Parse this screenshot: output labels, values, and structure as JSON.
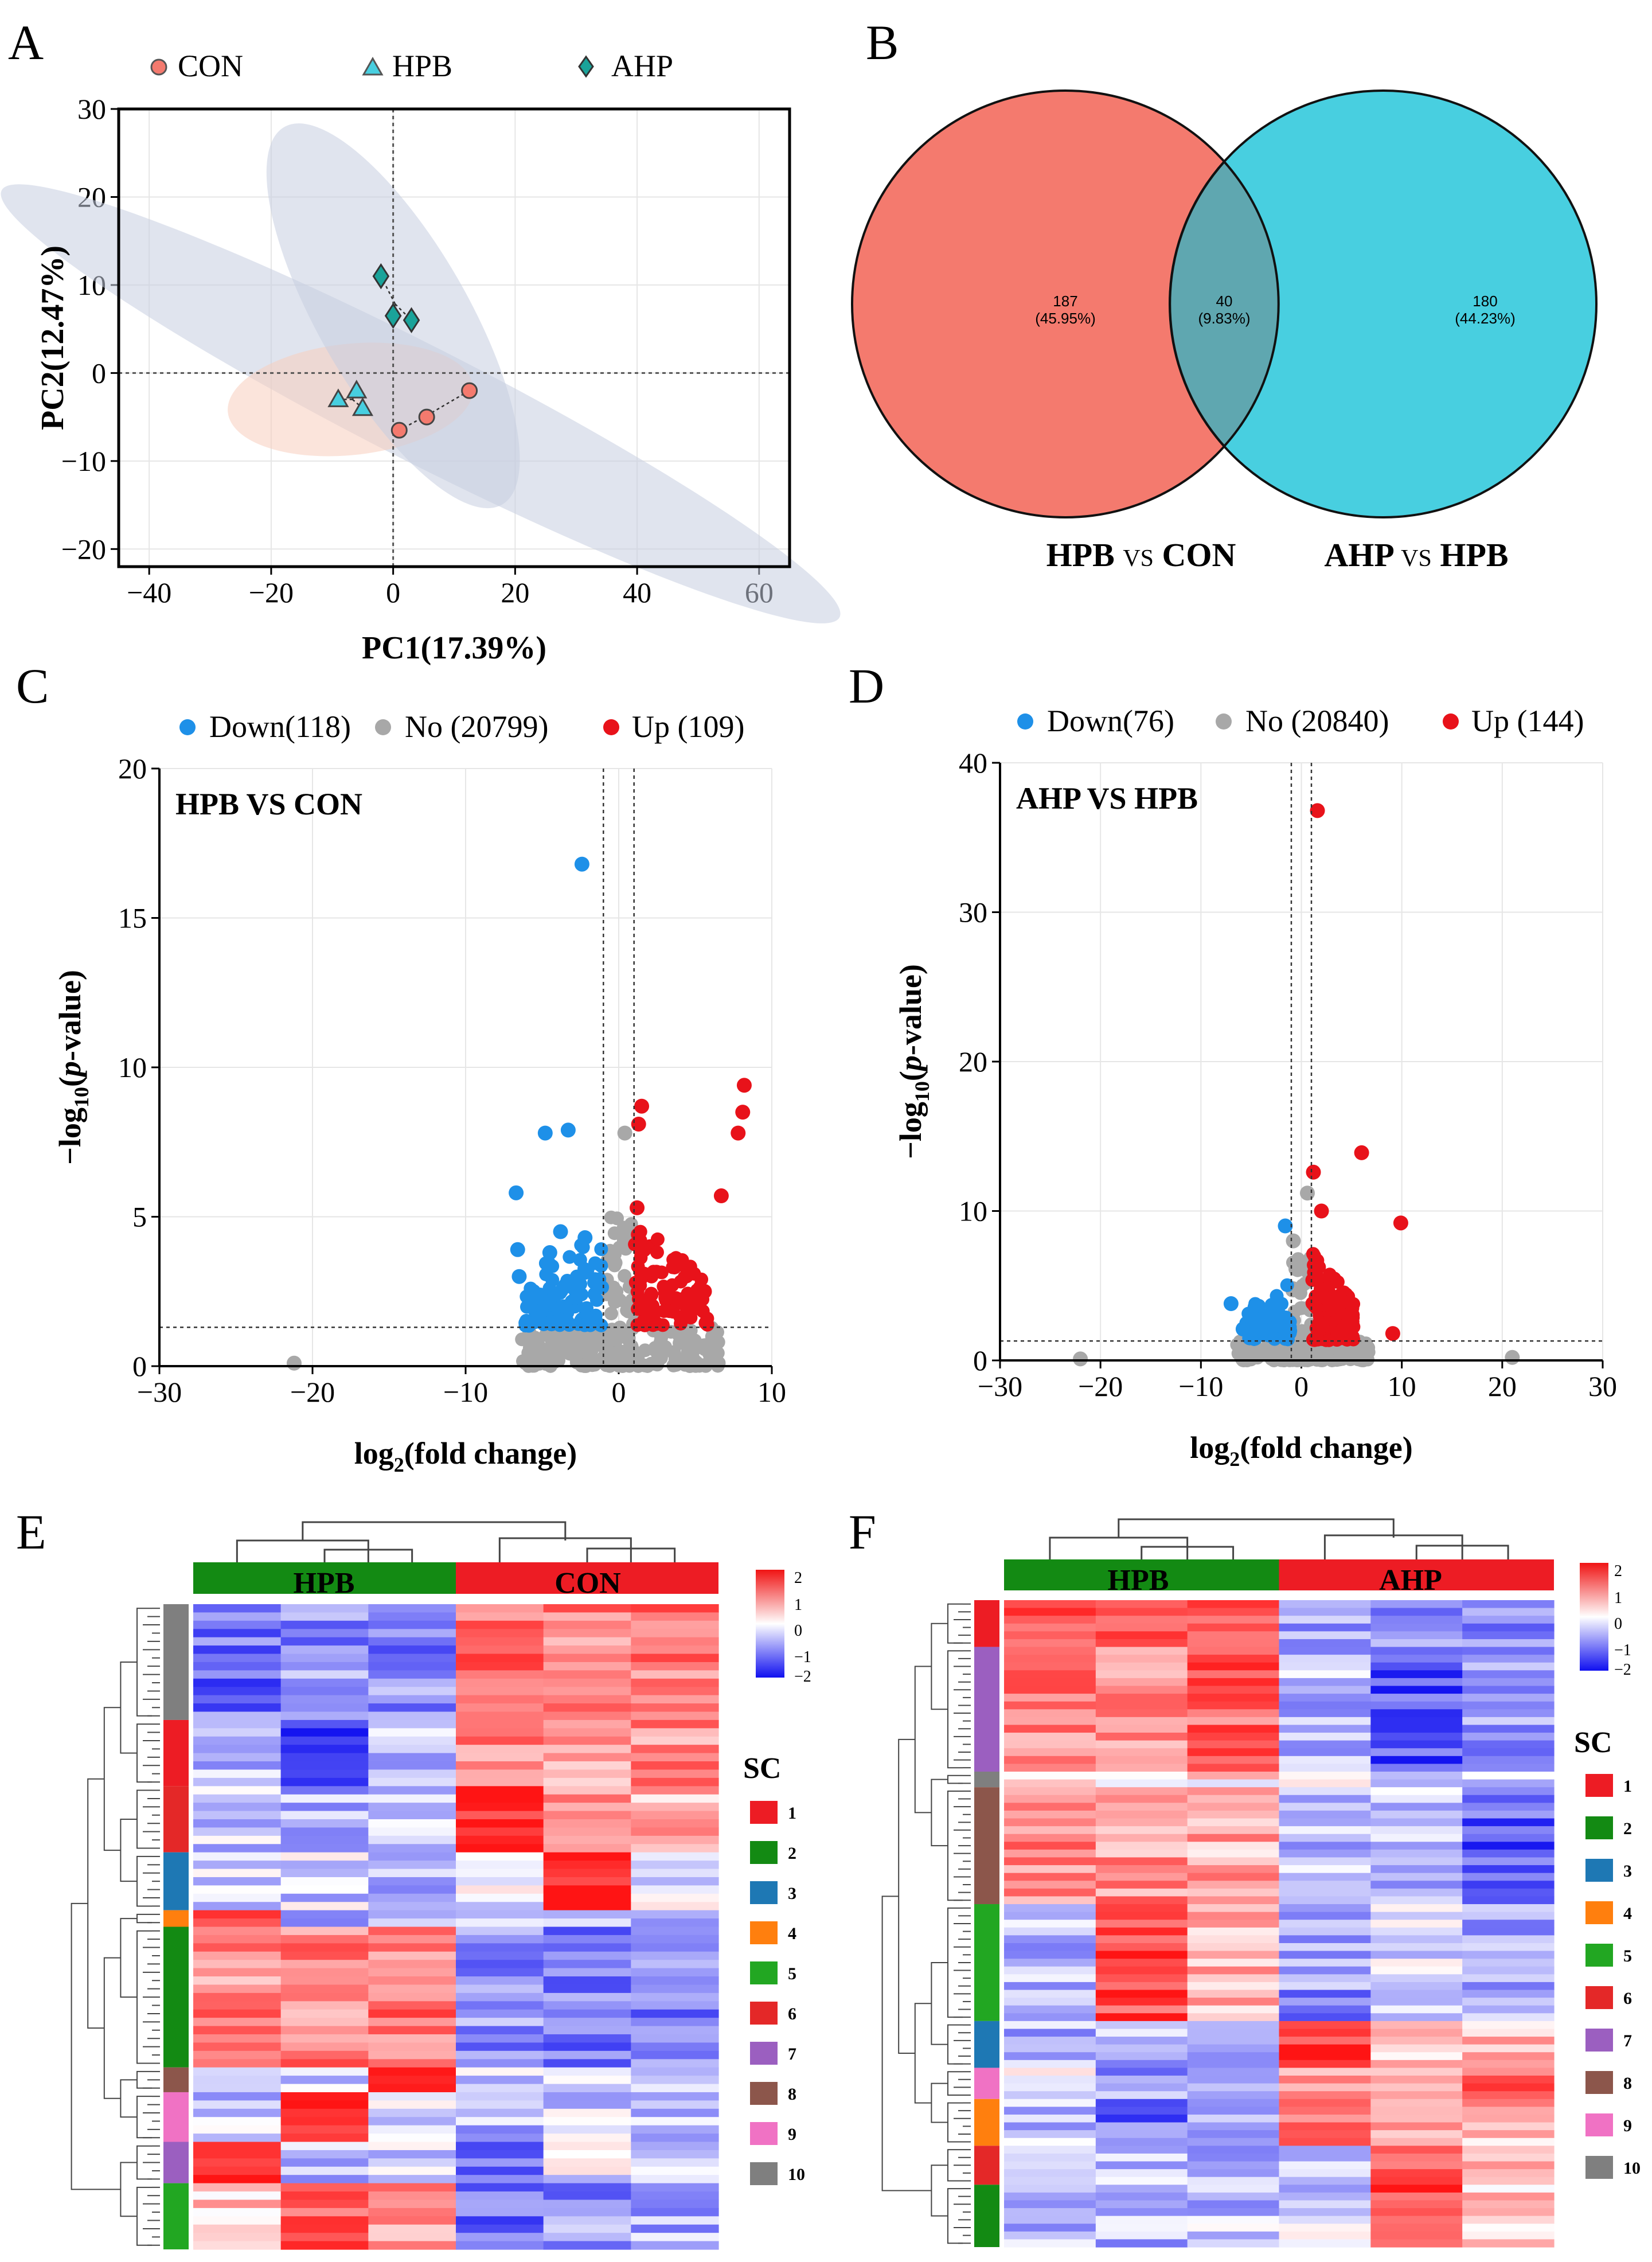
{
  "colors": {
    "con": "#f47a6e",
    "hpb": "#48cfe0",
    "ahp": "#1aa39a",
    "down": "#1e90e8",
    "up": "#e8121a",
    "no": "#a8a8a8",
    "hm_low": "#1010f0",
    "hm_high": "#f01414"
  },
  "panels": {
    "A": "A",
    "B": "B",
    "C": "C",
    "D": "D",
    "E": "E",
    "F": "F"
  },
  "chart_data": [
    {
      "type": "scatter",
      "panel": "A",
      "xlabel": "PC1(17.39%)",
      "ylabel": "PC2(12.47%)",
      "xlim": [
        -45,
        65
      ],
      "ylim": [
        -22,
        30
      ],
      "xticks": [
        -40,
        -20,
        0,
        20,
        40,
        60
      ],
      "yticks": [
        -20,
        -10,
        0,
        10,
        20,
        30
      ],
      "xtick_labels": [
        "−40",
        "−20",
        "0",
        "20",
        "40",
        "60"
      ],
      "ytick_labels": [
        "−20",
        "−10",
        "0",
        "10",
        "20",
        "30"
      ],
      "legend": [
        "CON",
        "HPB",
        "AHP"
      ],
      "series": [
        {
          "name": "CON",
          "marker": "circle",
          "points": [
            [
              1,
              -6.5
            ],
            [
              5.5,
              -5
            ],
            [
              12.5,
              -2
            ]
          ]
        },
        {
          "name": "HPB",
          "marker": "triangle",
          "points": [
            [
              -9,
              -3
            ],
            [
              -6,
              -2
            ],
            [
              -5,
              -4
            ]
          ]
        },
        {
          "name": "AHP",
          "marker": "diamond",
          "points": [
            [
              -2,
              11
            ],
            [
              0,
              6.5
            ],
            [
              3,
              6
            ]
          ]
        }
      ]
    },
    {
      "type": "venn",
      "panel": "B",
      "sets": [
        "HPB VS CON",
        "AHP VS HPB"
      ],
      "set_label_parts": [
        [
          "HPB",
          "VS",
          "CON"
        ],
        [
          "AHP",
          "VS",
          "HPB"
        ]
      ],
      "regions": [
        {
          "count": "187",
          "pct": "(45.95%)"
        },
        {
          "count": "40",
          "pct": "(9.83%)"
        },
        {
          "count": "180",
          "pct": "(44.23%)"
        }
      ]
    },
    {
      "type": "scatter",
      "panel": "C",
      "title": "HPB VS CON",
      "legend": {
        "down": "Down(118)",
        "no": "No (20799)",
        "up": "Up (109)"
      },
      "xlabel": "log2(fold change)",
      "ylabel": "−log10(p-value)",
      "xlim": [
        -30,
        10
      ],
      "ylim": [
        0,
        20
      ],
      "xticks": [
        -30,
        -20,
        -10,
        0,
        10
      ],
      "yticks": [
        0,
        5,
        10,
        15,
        20
      ],
      "xtick_labels": [
        "−30",
        "−20",
        "−10",
        "0",
        "10"
      ],
      "ytick_labels": [
        "0",
        "5",
        "10",
        "15",
        "20"
      ],
      "thresholds": {
        "fc": [
          -1,
          1
        ],
        "p": 1.3
      },
      "highlight_points": [
        {
          "x": -2.4,
          "y": 16.8,
          "g": "down"
        },
        {
          "x": -4.8,
          "y": 7.8,
          "g": "down"
        },
        {
          "x": -3.3,
          "y": 7.9,
          "g": "down"
        },
        {
          "x": -6.7,
          "y": 5.8,
          "g": "down"
        },
        {
          "x": -6.6,
          "y": 3.9,
          "g": "down"
        },
        {
          "x": -6.5,
          "y": 3.0,
          "g": "down"
        },
        {
          "x": -4.5,
          "y": 3.8,
          "g": "down"
        },
        {
          "x": -3.8,
          "y": 4.5,
          "g": "down"
        },
        {
          "x": -2.2,
          "y": 4.3,
          "g": "down"
        },
        {
          "x": 0.4,
          "y": 7.8,
          "g": "no"
        },
        {
          "x": -21.2,
          "y": 0.1,
          "g": "no"
        },
        {
          "x": 1.3,
          "y": 8.1,
          "g": "up"
        },
        {
          "x": 1.5,
          "y": 8.7,
          "g": "up"
        },
        {
          "x": 8.2,
          "y": 9.4,
          "g": "up"
        },
        {
          "x": 8.1,
          "y": 8.5,
          "g": "up"
        },
        {
          "x": 7.8,
          "y": 7.8,
          "g": "up"
        },
        {
          "x": 6.7,
          "y": 5.7,
          "g": "up"
        },
        {
          "x": 5.6,
          "y": 2.5,
          "g": "up"
        },
        {
          "x": 4.5,
          "y": 1.9,
          "g": "up"
        },
        {
          "x": 1.2,
          "y": 5.3,
          "g": "up"
        }
      ],
      "clusters": [
        {
          "g": "down",
          "n": 104,
          "xr": [
            -6.2,
            -1.05
          ],
          "yr": [
            1.35,
            5.0
          ],
          "seed": 11
        },
        {
          "g": "up",
          "n": 86,
          "xr": [
            1.05,
            5.8
          ],
          "yr": [
            1.35,
            5.2
          ],
          "seed": 23
        },
        {
          "g": "no",
          "n": 190,
          "xr": [
            -6.5,
            6.8
          ],
          "yr": [
            0.0,
            1.3
          ],
          "seed": 37
        },
        {
          "g": "no",
          "n": 60,
          "xr": [
            -1.0,
            1.0
          ],
          "yr": [
            0.0,
            5.0
          ],
          "seed": 41
        }
      ]
    },
    {
      "type": "scatter",
      "panel": "D",
      "title": "AHP VS HPB",
      "legend": {
        "down": "Down(76)",
        "no": "No (20840)",
        "up": "Up (144)"
      },
      "xlabel": "log2(fold change)",
      "ylabel": "−log10(p-value)",
      "xlim": [
        -30,
        30
      ],
      "ylim": [
        0,
        40
      ],
      "xticks": [
        -30,
        -20,
        -10,
        0,
        10,
        20,
        30
      ],
      "yticks": [
        0,
        10,
        20,
        30,
        40
      ],
      "xtick_labels": [
        "−30",
        "−20",
        "−10",
        "0",
        "10",
        "20",
        "30"
      ],
      "ytick_labels": [
        "0",
        "10",
        "20",
        "30",
        "40"
      ],
      "thresholds": {
        "fc": [
          -1,
          1
        ],
        "p": 1.3
      },
      "highlight_points": [
        {
          "x": 1.6,
          "y": 36.8,
          "g": "up"
        },
        {
          "x": 6.0,
          "y": 13.9,
          "g": "up"
        },
        {
          "x": 9.9,
          "y": 9.2,
          "g": "up"
        },
        {
          "x": 1.2,
          "y": 12.6,
          "g": "up"
        },
        {
          "x": 9.1,
          "y": 1.8,
          "g": "up"
        },
        {
          "x": 2.0,
          "y": 10.0,
          "g": "up"
        },
        {
          "x": -1.6,
          "y": 9.0,
          "g": "down"
        },
        {
          "x": -7.0,
          "y": 3.8,
          "g": "down"
        },
        {
          "x": -5.8,
          "y": 2.1,
          "g": "down"
        },
        {
          "x": 0.6,
          "y": 11.2,
          "g": "no"
        },
        {
          "x": -0.8,
          "y": 8.0,
          "g": "no"
        },
        {
          "x": -22.0,
          "y": 0.1,
          "g": "no"
        },
        {
          "x": 21.0,
          "y": 0.2,
          "g": "no"
        }
      ],
      "clusters": [
        {
          "g": "down",
          "n": 66,
          "xr": [
            -5.5,
            -1.05
          ],
          "yr": [
            1.35,
            6.0
          ],
          "seed": 5
        },
        {
          "g": "up",
          "n": 130,
          "xr": [
            1.05,
            5.2
          ],
          "yr": [
            1.35,
            8.0
          ],
          "seed": 17
        },
        {
          "g": "no",
          "n": 170,
          "xr": [
            -6.5,
            7.0
          ],
          "yr": [
            0.0,
            1.3
          ],
          "seed": 29
        },
        {
          "g": "no",
          "n": 50,
          "xr": [
            -1.0,
            1.0
          ],
          "yr": [
            0.0,
            7.0
          ],
          "seed": 31
        }
      ]
    },
    {
      "type": "heatmap",
      "panel": "E",
      "groups": [
        {
          "name": "HPB",
          "color": "#138a13"
        },
        {
          "name": "CON",
          "color": "#ed1c24"
        }
      ],
      "colorbar": {
        "ticks": [
          "2",
          "1",
          "0",
          "−1",
          "−2"
        ]
      },
      "legend_title": "SC",
      "sc_labels": [
        "1",
        "2",
        "3",
        "4",
        "5",
        "6",
        "7",
        "8",
        "9",
        "10"
      ],
      "sc_colors": [
        "#ed1c24",
        "#138a13",
        "#1e78b4",
        "#ff7f0e",
        "#22a722",
        "#e42828",
        "#9b5fc0",
        "#8c564b",
        "#f072c4",
        "#7f7f7f"
      ],
      "row_clusters": [
        10,
        1,
        6,
        3,
        4,
        2,
        8,
        9,
        7,
        5
      ],
      "cluster_sizes": [
        14,
        8,
        8,
        7,
        2,
        17,
        3,
        6,
        5,
        8
      ],
      "cluster_patterns": [
        [
          -1.2,
          -0.9,
          -1.0,
          1.3,
          1.0,
          1.1
        ],
        [
          -0.5,
          -1.6,
          -0.6,
          1.0,
          0.9,
          1.0
        ],
        [
          -0.4,
          -0.6,
          -0.5,
          2.0,
          0.7,
          0.6
        ],
        [
          -0.5,
          -0.4,
          -0.5,
          -0.3,
          2.1,
          -0.3
        ],
        [
          2.0,
          -0.6,
          -0.6,
          -0.5,
          -0.5,
          -0.5
        ],
        [
          1.0,
          1.0,
          1.1,
          -0.9,
          -1.2,
          -1.1
        ],
        [
          -0.6,
          -0.5,
          1.9,
          -0.4,
          -0.5,
          -0.4
        ],
        [
          -0.5,
          1.7,
          -0.4,
          -0.6,
          -0.4,
          -0.6
        ],
        [
          1.8,
          -0.5,
          -0.4,
          -1.0,
          -0.3,
          -0.5
        ],
        [
          0.4,
          1.5,
          0.8,
          -1.2,
          -0.9,
          -0.7
        ]
      ]
    },
    {
      "type": "heatmap",
      "panel": "F",
      "groups": [
        {
          "name": "HPB",
          "color": "#138a13"
        },
        {
          "name": "AHP",
          "color": "#ed1c24"
        }
      ],
      "colorbar": {
        "ticks": [
          "2",
          "1",
          "0",
          "−1",
          "−2"
        ]
      },
      "legend_title": "SC",
      "sc_labels": [
        "1",
        "2",
        "3",
        "4",
        "5",
        "6",
        "7",
        "8",
        "9",
        "10"
      ],
      "sc_colors": [
        "#ed1c24",
        "#138a13",
        "#1e78b4",
        "#ff7f0e",
        "#22a722",
        "#e42828",
        "#9b5fc0",
        "#8c564b",
        "#f072c4",
        "#7f7f7f"
      ],
      "row_clusters": [
        1,
        7,
        10,
        8,
        5,
        3,
        9,
        4,
        6,
        2
      ],
      "cluster_sizes": [
        6,
        16,
        2,
        15,
        15,
        6,
        4,
        6,
        5,
        8
      ],
      "cluster_patterns": [
        [
          1.6,
          1.3,
          1.2,
          -0.9,
          -1.0,
          -1.1
        ],
        [
          1.1,
          0.8,
          1.3,
          -0.6,
          -1.5,
          -0.9
        ],
        [
          0.2,
          0.3,
          0.2,
          -0.2,
          -0.3,
          -0.2
        ],
        [
          1.0,
          0.9,
          0.7,
          -0.6,
          -0.6,
          -1.4
        ],
        [
          -0.6,
          1.6,
          0.6,
          -0.9,
          -0.4,
          -0.7
        ],
        [
          -0.6,
          -0.6,
          -0.5,
          1.7,
          0.5,
          0.6
        ],
        [
          -0.2,
          -0.9,
          -0.5,
          0.6,
          0.3,
          1.3
        ],
        [
          -0.5,
          -1.2,
          -0.6,
          1.0,
          1.0,
          0.6
        ],
        [
          -0.4,
          -0.5,
          -0.6,
          -0.4,
          1.6,
          0.8
        ],
        [
          -0.5,
          -0.6,
          -0.5,
          -0.4,
          1.7,
          0.4
        ]
      ]
    }
  ]
}
